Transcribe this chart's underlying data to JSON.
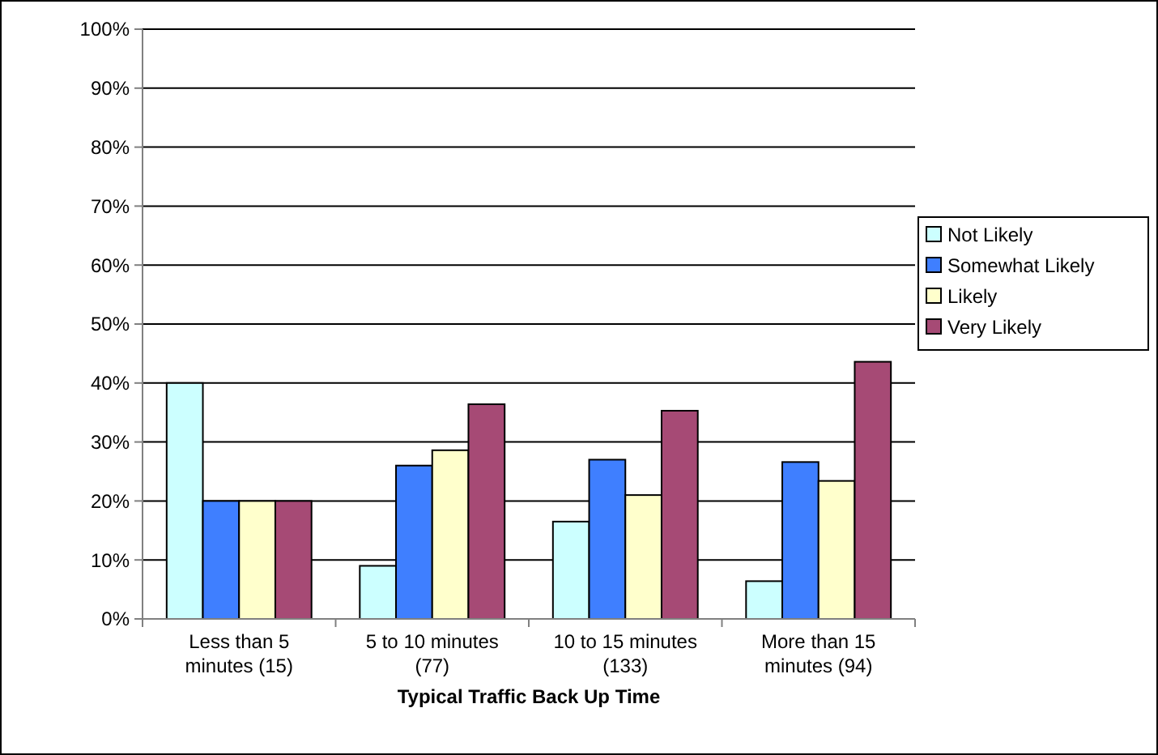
{
  "chart_data": {
    "type": "bar",
    "xlabel": "Typical Traffic Back Up Time",
    "categories": [
      "Less than 5 minutes (15)",
      "5 to 10 minutes (77)",
      "10 to 15 minutes (133)",
      "More than 15 minutes (94)"
    ],
    "series": [
      {
        "name": "Not Likely",
        "color": "#ccffff",
        "values": [
          40,
          9,
          16.5,
          6.4
        ]
      },
      {
        "name": "Somewhat Likely",
        "color": "#3f7fff",
        "values": [
          20,
          26,
          27,
          26.6
        ]
      },
      {
        "name": "Likely",
        "color": "#ffffcc",
        "values": [
          20,
          28.6,
          21,
          23.4
        ]
      },
      {
        "name": "Very Likely",
        "color": "#a64a75",
        "values": [
          20,
          36.4,
          35.3,
          43.6
        ]
      }
    ],
    "ylim": [
      0,
      100
    ],
    "yticks": [
      {
        "value": 0,
        "label": "0%"
      },
      {
        "value": 10,
        "label": "10%"
      },
      {
        "value": 20,
        "label": "20%"
      },
      {
        "value": 30,
        "label": "30%"
      },
      {
        "value": 40,
        "label": "40%"
      },
      {
        "value": 50,
        "label": "50%"
      },
      {
        "value": 60,
        "label": "60%"
      },
      {
        "value": 70,
        "label": "70%"
      },
      {
        "value": 80,
        "label": "80%"
      },
      {
        "value": 90,
        "label": "90%"
      },
      {
        "value": 100,
        "label": "100%"
      }
    ],
    "grid": "y",
    "legend": "right"
  }
}
